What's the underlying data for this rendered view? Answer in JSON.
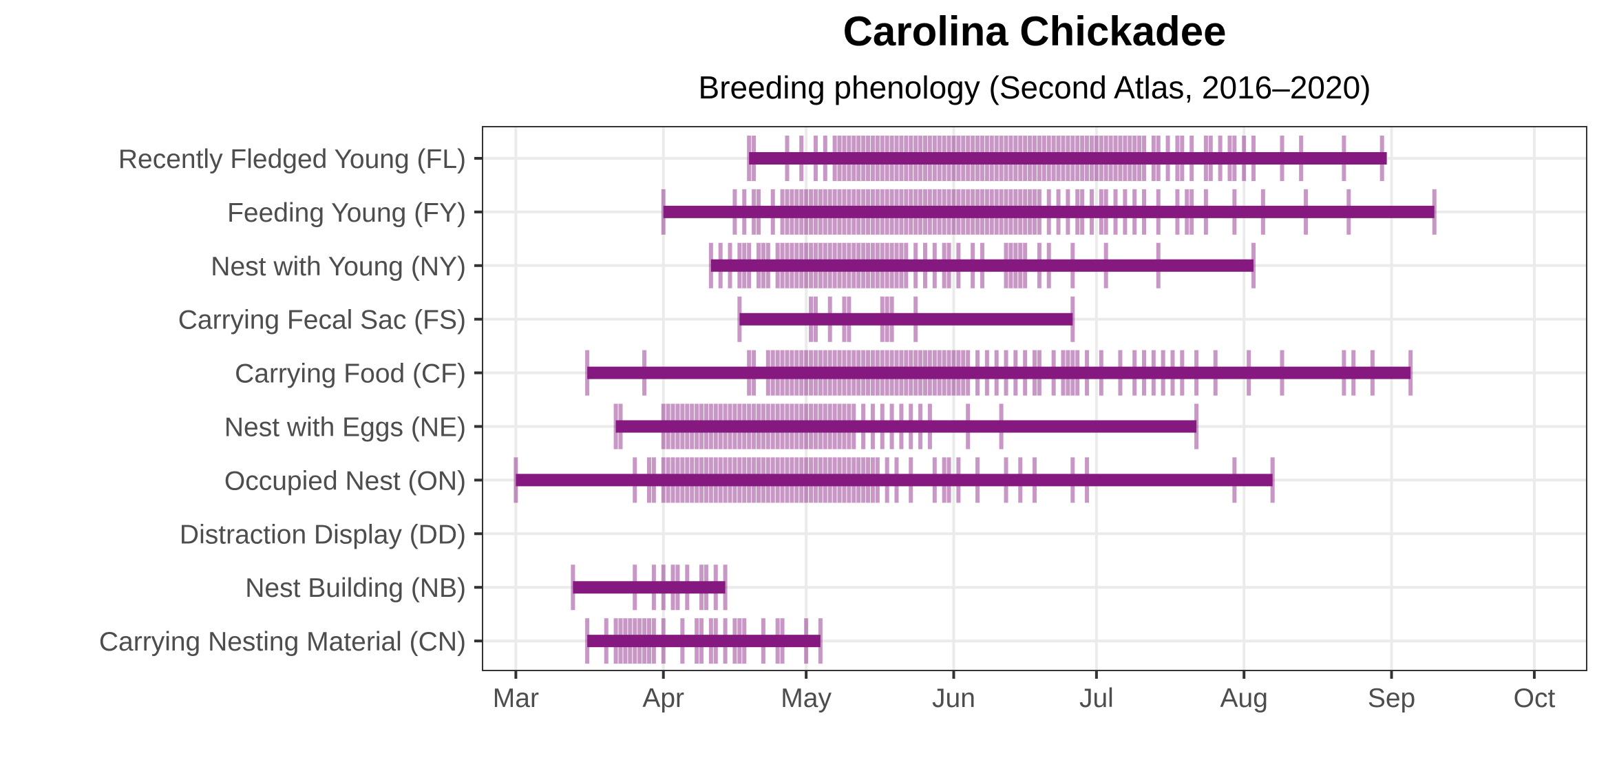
{
  "chart_data": {
    "type": "phenology",
    "title": "Carolina Chickadee",
    "subtitle": "Breeding phenology (Second Atlas, 2016–2020)",
    "xlabel": "",
    "ylabel": "",
    "x_unit": "day of year",
    "xlim": [
      53,
      285
    ],
    "x_ticks": [
      {
        "label": "Mar",
        "day": 60
      },
      {
        "label": "Apr",
        "day": 91
      },
      {
        "label": "May",
        "day": 121
      },
      {
        "label": "Jun",
        "day": 152
      },
      {
        "label": "Jul",
        "day": 182
      },
      {
        "label": "Aug",
        "day": 213
      },
      {
        "label": "Sep",
        "day": 244
      },
      {
        "label": "Oct",
        "day": 274
      }
    ],
    "grid": true,
    "colors": {
      "bar": "#86197f",
      "tick": "#86197f",
      "grid": "#ebebeb",
      "panel_border": "#333333",
      "axis_text": "#4d4d4d"
    },
    "series": [
      {
        "name": "Recently Fledged Young (FL)",
        "range": [
          109,
          243
        ],
        "observations": [
          109,
          110,
          117,
          120,
          123,
          125,
          127,
          128,
          129,
          130,
          131,
          132,
          133,
          134,
          135,
          136,
          137,
          138,
          139,
          140,
          141,
          142,
          143,
          144,
          145,
          146,
          147,
          148,
          149,
          150,
          151,
          152,
          153,
          154,
          155,
          156,
          157,
          158,
          159,
          160,
          161,
          162,
          163,
          164,
          165,
          166,
          167,
          168,
          169,
          170,
          171,
          172,
          173,
          174,
          175,
          176,
          177,
          178,
          179,
          180,
          181,
          182,
          183,
          184,
          185,
          186,
          187,
          188,
          189,
          190,
          191,
          192,
          194,
          195,
          197,
          199,
          200,
          202,
          205,
          206,
          208,
          210,
          211,
          213,
          215,
          221,
          225,
          234,
          242
        ]
      },
      {
        "name": "Feeding Young (FY)",
        "range": [
          91,
          253
        ],
        "observations": [
          91,
          106,
          108,
          110,
          111,
          114,
          116,
          117,
          118,
          119,
          120,
          121,
          122,
          123,
          124,
          125,
          126,
          127,
          128,
          129,
          130,
          131,
          132,
          133,
          134,
          135,
          136,
          137,
          138,
          139,
          140,
          141,
          142,
          143,
          144,
          145,
          146,
          147,
          148,
          149,
          150,
          151,
          152,
          153,
          154,
          155,
          156,
          157,
          158,
          159,
          160,
          161,
          162,
          163,
          164,
          165,
          166,
          167,
          168,
          169,
          170,
          172,
          174,
          176,
          178,
          179,
          181,
          183,
          184,
          186,
          188,
          190,
          192,
          195,
          199,
          201,
          202,
          205,
          211,
          217,
          226,
          235,
          253
        ]
      },
      {
        "name": "Nest with Young (NY)",
        "range": [
          101,
          215
        ],
        "observations": [
          101,
          103,
          105,
          107,
          108,
          109,
          111,
          112,
          113,
          115,
          116,
          117,
          118,
          119,
          120,
          121,
          122,
          123,
          124,
          125,
          126,
          127,
          128,
          129,
          130,
          131,
          132,
          133,
          134,
          135,
          136,
          137,
          138,
          139,
          140,
          141,
          142,
          144,
          146,
          148,
          150,
          151,
          153,
          156,
          158,
          163,
          164,
          165,
          166,
          167,
          170,
          172,
          177,
          184,
          195,
          215
        ]
      },
      {
        "name": "Carrying Fecal Sac (FS)",
        "range": [
          107,
          177
        ],
        "observations": [
          107,
          122,
          123,
          126,
          129,
          130,
          137,
          138,
          139,
          144,
          177
        ]
      },
      {
        "name": "Carrying Food (CF)",
        "range": [
          75,
          248
        ],
        "observations": [
          75,
          87,
          109,
          110,
          113,
          114,
          115,
          116,
          117,
          118,
          119,
          120,
          121,
          122,
          123,
          124,
          125,
          126,
          127,
          128,
          129,
          130,
          131,
          132,
          133,
          134,
          135,
          136,
          137,
          138,
          139,
          140,
          141,
          142,
          143,
          144,
          145,
          146,
          147,
          148,
          149,
          150,
          151,
          152,
          153,
          154,
          155,
          157,
          159,
          161,
          163,
          165,
          167,
          169,
          170,
          173,
          175,
          176,
          177,
          178,
          180,
          183,
          187,
          190,
          192,
          194,
          196,
          198,
          200,
          203,
          207,
          214,
          221,
          234,
          236,
          240,
          248
        ]
      },
      {
        "name": "Nest with Eggs (NE)",
        "range": [
          81,
          203
        ],
        "observations": [
          81,
          82,
          91,
          92,
          93,
          94,
          95,
          96,
          97,
          98,
          99,
          100,
          101,
          102,
          103,
          104,
          105,
          106,
          107,
          108,
          109,
          110,
          111,
          112,
          113,
          114,
          115,
          116,
          117,
          118,
          119,
          120,
          121,
          122,
          123,
          124,
          125,
          126,
          127,
          128,
          129,
          130,
          131,
          133,
          135,
          137,
          139,
          141,
          143,
          145,
          147,
          155,
          162,
          203
        ]
      },
      {
        "name": "Occupied Nest (ON)",
        "range": [
          60,
          219
        ],
        "observations": [
          60,
          85,
          88,
          89,
          91,
          92,
          93,
          94,
          95,
          96,
          97,
          98,
          99,
          100,
          101,
          102,
          103,
          104,
          105,
          106,
          107,
          108,
          109,
          110,
          111,
          112,
          113,
          114,
          115,
          116,
          117,
          118,
          119,
          120,
          121,
          122,
          123,
          124,
          125,
          126,
          127,
          128,
          129,
          130,
          131,
          132,
          133,
          134,
          135,
          136,
          138,
          140,
          143,
          148,
          150,
          151,
          153,
          157,
          163,
          166,
          169,
          177,
          180,
          211,
          219
        ]
      },
      {
        "name": "Distraction Display (DD)",
        "range": null,
        "observations": []
      },
      {
        "name": "Nest Building (NB)",
        "range": [
          72,
          104
        ],
        "observations": [
          72,
          85,
          89,
          91,
          93,
          94,
          96,
          99,
          100,
          102,
          104
        ]
      },
      {
        "name": "Carrying Nesting Material (CN)",
        "range": [
          75,
          124
        ],
        "observations": [
          75,
          79,
          81,
          82,
          83,
          84,
          85,
          86,
          87,
          88,
          89,
          91,
          95,
          98,
          99,
          101,
          102,
          104,
          106,
          107,
          108,
          112,
          115,
          116,
          121,
          124
        ]
      }
    ]
  }
}
